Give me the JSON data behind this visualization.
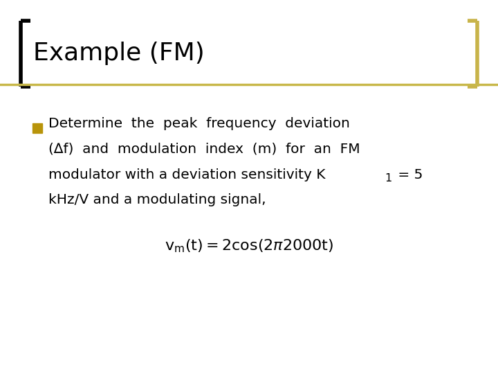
{
  "title": "Example (FM)",
  "title_color": "#000000",
  "title_fontsize": 26,
  "background_color": "#ffffff",
  "header_line_color": "#c8b84a",
  "left_bracket_color": "#000000",
  "right_bracket_color": "#c8b44a",
  "bullet_color": "#b8940a",
  "text_fontsize": 14.5,
  "formula_fontsize": 16,
  "line1": "Determine  the  peak  frequency  deviation",
  "line2": "(∆f)  and  modulation  index  (m)  for  an  FM",
  "line3a": "modulator with a deviation sensitivity K",
  "line3b": " = 5",
  "line4": "kHz/V and a modulating signal,"
}
